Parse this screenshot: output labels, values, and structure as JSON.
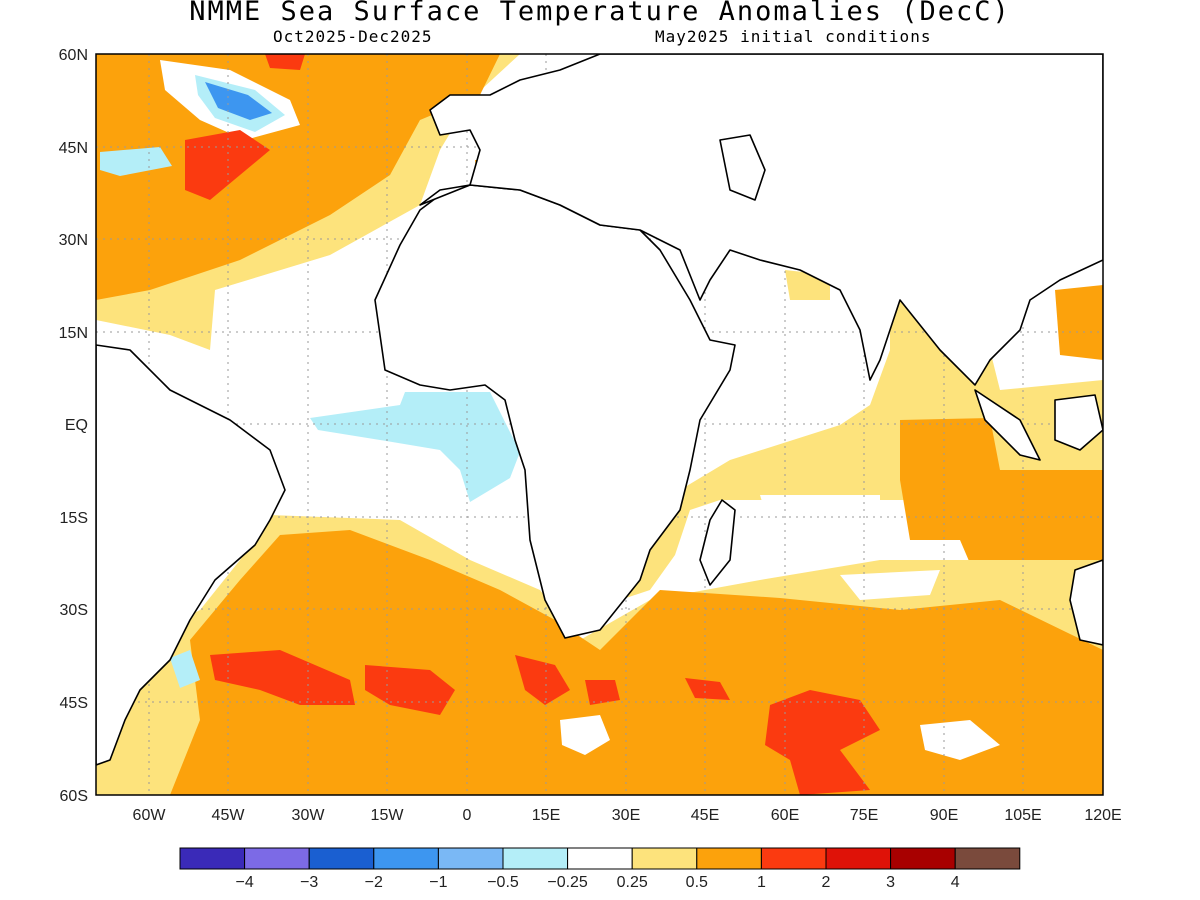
{
  "header": {
    "title": "NMME Sea Surface Temperature Anomalies (DecC)",
    "period": "Oct2025-Dec2025",
    "init": "May2025 initial conditions"
  },
  "axes": {
    "lat_ticks": [
      "60N",
      "45N",
      "30N",
      "15N",
      "EQ",
      "15S",
      "30S",
      "45S",
      "60S"
    ],
    "lon_ticks": [
      "60W",
      "45W",
      "30W",
      "15W",
      "0",
      "15E",
      "30E",
      "45E",
      "60E",
      "75E",
      "90E",
      "105E",
      "120E"
    ]
  },
  "colorbar": {
    "colors": [
      "#3a2ab8",
      "#7c6ae6",
      "#1a5fd1",
      "#3d96f0",
      "#7ab8f5",
      "#b4eef8",
      "#ffffff",
      "#fde37c",
      "#fca20c",
      "#fb3a10",
      "#df1208",
      "#a80000",
      "#7a4a3c"
    ],
    "labels": [
      "-4",
      "-3",
      "-2",
      "-1",
      "-0.5",
      "-0.25",
      "0.25",
      "0.5",
      "1",
      "2",
      "3",
      "4"
    ]
  },
  "chart_data": {
    "type": "heatmap",
    "title": "NMME Sea Surface Temperature Anomalies (DecC)",
    "subtitle": "Oct2025-Dec2025",
    "annotation": "May2025 initial conditions",
    "xlim": [
      "70W",
      "120E"
    ],
    "ylim": [
      "60S",
      "60N"
    ],
    "levels": [
      -4,
      -3,
      -2,
      -1,
      -0.5,
      -0.25,
      0.25,
      0.5,
      1,
      2,
      3,
      4
    ],
    "grid": true
  }
}
